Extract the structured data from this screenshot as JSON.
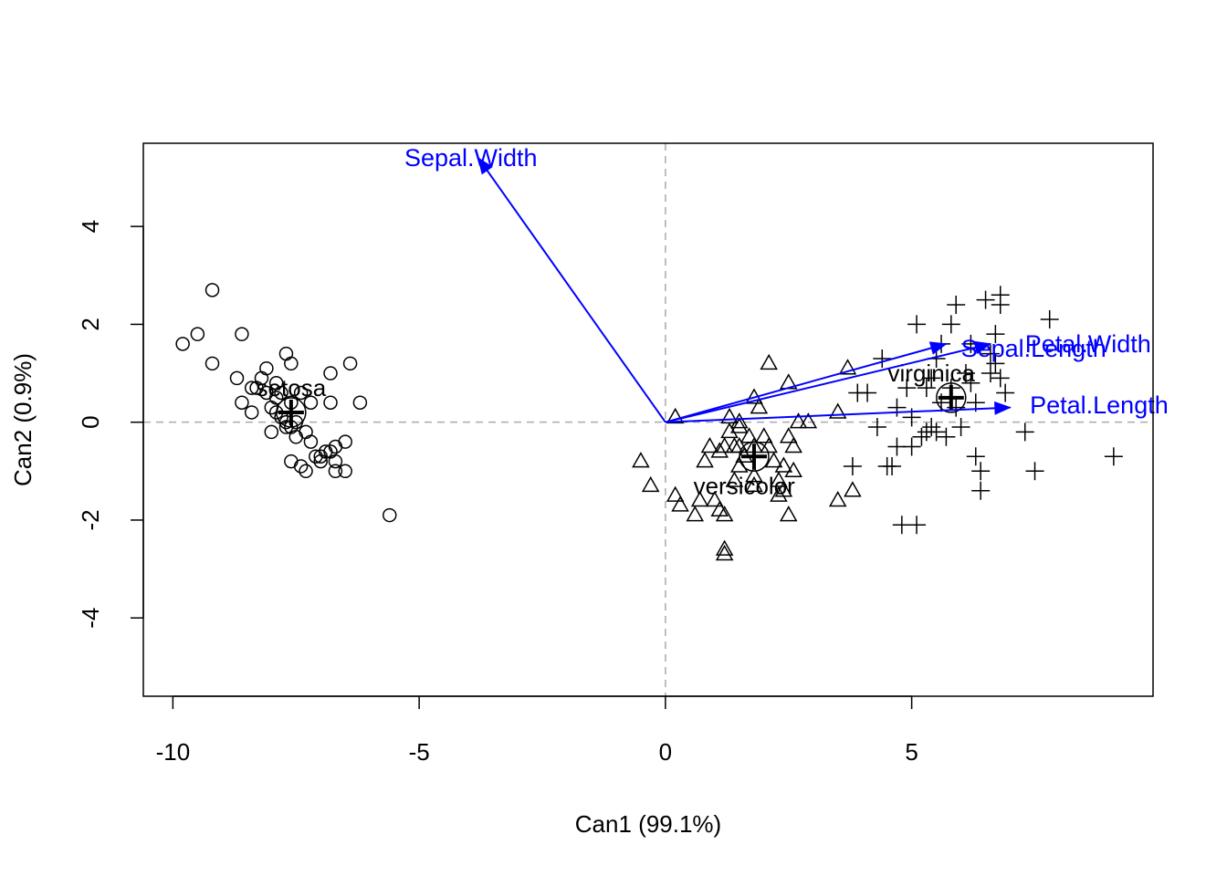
{
  "chart_data": {
    "type": "scatter",
    "title": "",
    "xlabel": "Can1 (99.1%)",
    "ylabel": "Can2 (0.9%)",
    "xlim": [
      -10.6,
      9.9
    ],
    "ylim": [
      -5.6,
      5.7
    ],
    "xticks": [
      -10,
      -5,
      0,
      5
    ],
    "yticks": [
      -4,
      -2,
      0,
      2,
      4
    ],
    "reference_lines": {
      "x": 0,
      "y": 0,
      "style": "dashed",
      "color": "#aaaaaa"
    },
    "series": [
      {
        "name": "setosa",
        "marker": "circle",
        "centroid": [
          -7.6,
          0.2
        ],
        "points": [
          [
            -9.8,
            1.6
          ],
          [
            -9.5,
            1.8
          ],
          [
            -9.2,
            2.7
          ],
          [
            -9.2,
            1.2
          ],
          [
            -8.6,
            1.8
          ],
          [
            -8.7,
            0.9
          ],
          [
            -8.6,
            0.4
          ],
          [
            -8.4,
            0.7
          ],
          [
            -8.4,
            0.2
          ],
          [
            -8.3,
            0.7
          ],
          [
            -8.1,
            1.1
          ],
          [
            -8.2,
            0.9
          ],
          [
            -8.1,
            0.6
          ],
          [
            -8.0,
            0.3
          ],
          [
            -8.0,
            -0.2
          ],
          [
            -7.9,
            0.5
          ],
          [
            -7.9,
            0.8
          ],
          [
            -7.8,
            0.1
          ],
          [
            -7.7,
            1.4
          ],
          [
            -7.7,
            -0.1
          ],
          [
            -7.6,
            1.2
          ],
          [
            -7.6,
            0.4
          ],
          [
            -7.5,
            0.0
          ],
          [
            -7.5,
            -0.3
          ],
          [
            -7.4,
            0.6
          ],
          [
            -7.3,
            -0.2
          ],
          [
            -7.2,
            0.4
          ],
          [
            -7.6,
            -0.8
          ],
          [
            -7.4,
            -0.9
          ],
          [
            -7.3,
            -1.0
          ],
          [
            -7.2,
            -0.4
          ],
          [
            -7.1,
            -0.7
          ],
          [
            -7.0,
            -0.8
          ],
          [
            -6.9,
            -0.6
          ],
          [
            -6.8,
            1.0
          ],
          [
            -6.8,
            0.4
          ],
          [
            -6.8,
            -0.6
          ],
          [
            -6.7,
            -0.5
          ],
          [
            -6.7,
            -0.8
          ],
          [
            -6.7,
            -1.0
          ],
          [
            -6.5,
            -0.4
          ],
          [
            -6.5,
            -1.0
          ],
          [
            -6.4,
            1.2
          ],
          [
            -6.2,
            0.4
          ],
          [
            -5.6,
            -1.9
          ],
          [
            -7.0,
            -0.7
          ],
          [
            -7.7,
            0.0
          ],
          [
            -7.9,
            0.2
          ],
          [
            -7.6,
            -0.1
          ],
          [
            -7.8,
            0.6
          ]
        ]
      },
      {
        "name": "versicolor",
        "marker": "triangle",
        "centroid": [
          1.8,
          -0.7
        ],
        "points": [
          [
            -0.5,
            -0.8
          ],
          [
            -0.3,
            -1.3
          ],
          [
            0.2,
            0.1
          ],
          [
            0.2,
            -1.5
          ],
          [
            0.3,
            -1.7
          ],
          [
            0.6,
            -1.9
          ],
          [
            0.7,
            -1.6
          ],
          [
            0.8,
            -0.8
          ],
          [
            0.9,
            -0.5
          ],
          [
            1.0,
            -1.6
          ],
          [
            1.1,
            -0.6
          ],
          [
            1.1,
            -1.8
          ],
          [
            1.2,
            -1.9
          ],
          [
            1.2,
            -2.6
          ],
          [
            1.2,
            -2.7
          ],
          [
            1.2,
            -0.5
          ],
          [
            1.3,
            0.1
          ],
          [
            1.3,
            -0.2
          ],
          [
            1.4,
            -0.5
          ],
          [
            1.4,
            -1.2
          ],
          [
            1.5,
            -0.1
          ],
          [
            1.5,
            -0.5
          ],
          [
            1.5,
            -0.9
          ],
          [
            1.5,
            0.0
          ],
          [
            1.6,
            -0.7
          ],
          [
            1.7,
            -0.3
          ],
          [
            1.8,
            -0.5
          ],
          [
            1.8,
            -1.1
          ],
          [
            1.8,
            -1.3
          ],
          [
            1.8,
            0.5
          ],
          [
            1.9,
            0.3
          ],
          [
            2.0,
            -0.3
          ],
          [
            2.1,
            1.2
          ],
          [
            2.1,
            -0.5
          ],
          [
            2.2,
            -0.8
          ],
          [
            2.3,
            -1.2
          ],
          [
            2.3,
            -1.5
          ],
          [
            2.4,
            -1.4
          ],
          [
            2.4,
            -0.9
          ],
          [
            2.5,
            0.8
          ],
          [
            2.5,
            -1.9
          ],
          [
            2.5,
            -0.3
          ],
          [
            2.6,
            -0.5
          ],
          [
            2.6,
            -1.0
          ],
          [
            2.7,
            0.0
          ],
          [
            2.9,
            0.0
          ],
          [
            3.5,
            0.2
          ],
          [
            3.5,
            -1.6
          ],
          [
            3.7,
            1.1
          ],
          [
            3.8,
            -1.4
          ]
        ]
      },
      {
        "name": "virginica",
        "marker": "plus",
        "centroid": [
          5.8,
          0.5
        ],
        "points": [
          [
            3.8,
            -0.9
          ],
          [
            3.9,
            0.6
          ],
          [
            4.1,
            0.6
          ],
          [
            4.3,
            -0.1
          ],
          [
            4.4,
            1.3
          ],
          [
            4.5,
            -0.9
          ],
          [
            4.6,
            -0.9
          ],
          [
            4.7,
            0.3
          ],
          [
            4.7,
            -0.5
          ],
          [
            4.8,
            -2.1
          ],
          [
            4.9,
            0.7
          ],
          [
            5.0,
            0.1
          ],
          [
            5.0,
            -0.5
          ],
          [
            5.1,
            2.0
          ],
          [
            5.1,
            -2.1
          ],
          [
            5.2,
            -0.3
          ],
          [
            5.3,
            0.7
          ],
          [
            5.3,
            -0.2
          ],
          [
            5.4,
            0.9
          ],
          [
            5.4,
            -0.1
          ],
          [
            5.5,
            1.3
          ],
          [
            5.5,
            -0.2
          ],
          [
            5.6,
            1.6
          ],
          [
            5.6,
            0.4
          ],
          [
            5.7,
            -0.3
          ],
          [
            5.8,
            0.7
          ],
          [
            5.8,
            2.0
          ],
          [
            5.9,
            2.4
          ],
          [
            5.9,
            0.3
          ],
          [
            6.0,
            -0.1
          ],
          [
            6.1,
            1.0
          ],
          [
            6.2,
            0.8
          ],
          [
            6.3,
            -0.7
          ],
          [
            6.3,
            0.4
          ],
          [
            6.4,
            -1.0
          ],
          [
            6.4,
            -1.4
          ],
          [
            6.5,
            2.5
          ],
          [
            6.6,
            1.4
          ],
          [
            6.7,
            1.8
          ],
          [
            6.7,
            1.2
          ],
          [
            6.8,
            2.6
          ],
          [
            6.8,
            2.4
          ],
          [
            6.8,
            0.9
          ],
          [
            6.9,
            0.6
          ],
          [
            7.3,
            -0.2
          ],
          [
            7.5,
            -1.0
          ],
          [
            7.8,
            2.1
          ],
          [
            9.1,
            -0.7
          ],
          [
            6.6,
            1.0
          ],
          [
            6.2,
            1.6
          ]
        ]
      }
    ],
    "group_labels": [
      {
        "text": "setosa",
        "x": -7.6,
        "y": 0.7
      },
      {
        "text": "versicolor",
        "x": 1.6,
        "y": -1.3
      },
      {
        "text": "virginica",
        "x": 5.4,
        "y": 1.0
      }
    ],
    "vectors": [
      {
        "name": "Sepal.Width",
        "x": -3.8,
        "y": 5.4,
        "label_x": -5.3,
        "label_y": 5.4
      },
      {
        "name": "Sepal.Length",
        "x": 5.7,
        "y": 1.6,
        "label_x": 6.0,
        "label_y": 1.5
      },
      {
        "name": "Petal.Width",
        "x": 6.6,
        "y": 1.6,
        "label_x": 7.3,
        "label_y": 1.6
      },
      {
        "name": "Petal.Length",
        "x": 7.0,
        "y": 0.3,
        "label_x": 7.4,
        "label_y": 0.35
      }
    ],
    "colors": {
      "points": "#000000",
      "vectors": "#0000ff",
      "refline": "#aaaaaa"
    }
  }
}
